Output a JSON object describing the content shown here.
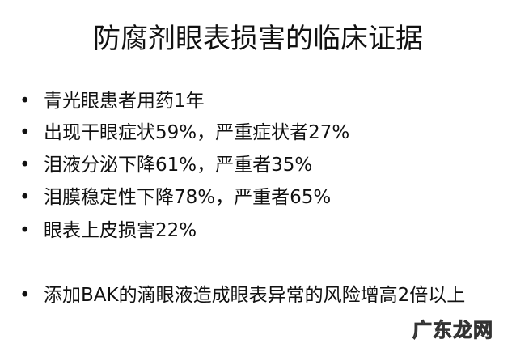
{
  "title": "防腐剂眼表损害的临床证据",
  "bullets": [
    "青光眼患者用药1年",
    "出现干眼症状59%，严重症状者27%",
    "泪液分泌下降61%，严重者35%",
    "泪膜稳定性下降78%，严重者65%",
    "眼表上皮损害22%",
    "添加BAK的滴眼液造成眼表异常的风险增高2倍以上"
  ],
  "watermark": "广东龙网"
}
